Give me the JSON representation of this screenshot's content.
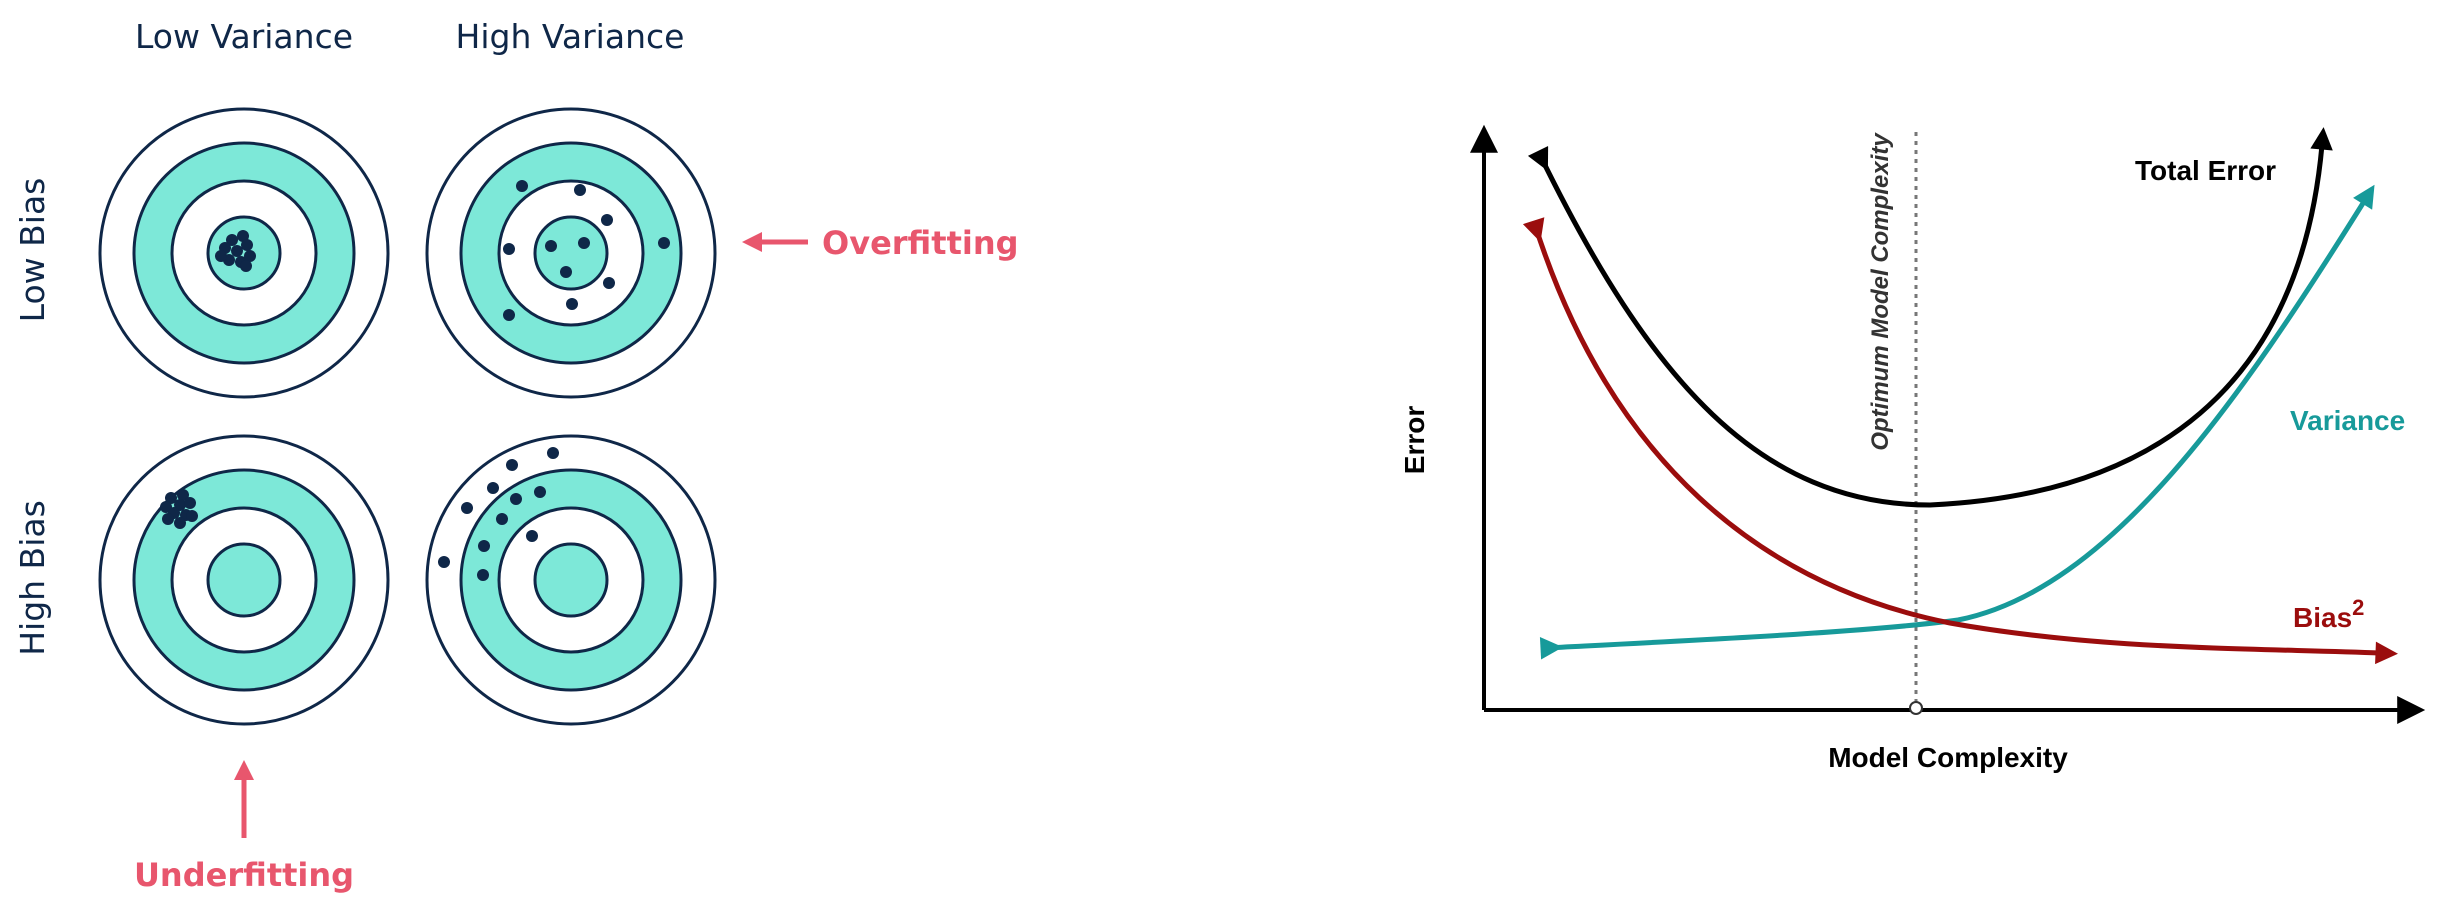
{
  "targets": {
    "column_labels": [
      "Low Variance",
      "High Variance"
    ],
    "row_labels": [
      "Low Bias",
      "High Bias"
    ],
    "annotations": {
      "overfitting": "Overfitting",
      "underfitting": "Underfitting"
    },
    "colors": {
      "ring_fill": "#7de8d8",
      "ring_stroke": "#0f2748",
      "dot": "#0f2748",
      "annotation": "#e8566d"
    }
  },
  "chart": {
    "vertical_marker_label": "Optimum Model Complexity",
    "curve_labels": {
      "total_error": "Total Error",
      "variance": "Variance",
      "bias_base": "Bias",
      "bias_sup": "2"
    },
    "axes": {
      "xlabel": "Model Complexity",
      "ylabel": "Error"
    },
    "colors": {
      "total_error": "#000000",
      "variance": "#179a9a",
      "bias": "#9b0d0d",
      "marker": "#777777"
    }
  }
}
